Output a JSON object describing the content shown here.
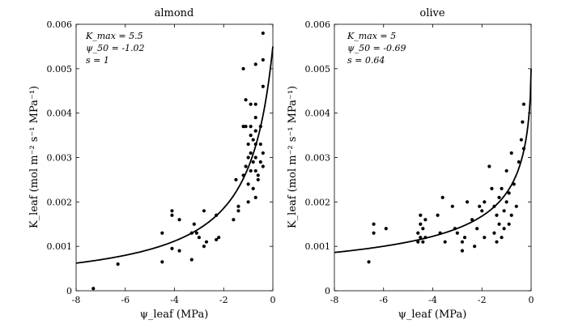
{
  "chart_data": [
    {
      "type": "scatter",
      "title": "almond",
      "xlabel": "ψ_leaf (MPa)",
      "ylabel": "K_leaf (mol m⁻² s⁻¹ MPa⁻¹)",
      "xlim": [
        -8,
        0
      ],
      "ylim": [
        0,
        0.006
      ],
      "xticks": [
        -8,
        -6,
        -4,
        -2,
        0
      ],
      "yticks": [
        0,
        0.001,
        0.002,
        0.003,
        0.004,
        0.005,
        0.006
      ],
      "xtick_labels": [
        "-8",
        "-6",
        "-4",
        "-2",
        "0"
      ],
      "ytick_labels": [
        "0",
        "0.001",
        "0.002",
        "0.003",
        "0.004",
        "0.005",
        "0.006"
      ],
      "annotations": [
        "K_max = 5.5",
        "ψ_50 = -1.02",
        "s = 1"
      ],
      "fit": {
        "kmax": 0.0055,
        "psi50": -1.02,
        "s": 1
      },
      "points": [
        [
          -7.3,
          5e-05
        ],
        [
          -6.3,
          0.0006
        ],
        [
          -4.5,
          0.0013
        ],
        [
          -4.5,
          0.00065
        ],
        [
          -4.1,
          0.0018
        ],
        [
          -4.1,
          0.0017
        ],
        [
          -4.1,
          0.00095
        ],
        [
          -3.8,
          0.0016
        ],
        [
          -3.8,
          0.0009
        ],
        [
          -3.3,
          0.0013
        ],
        [
          -3.2,
          0.0015
        ],
        [
          -3.1,
          0.0013
        ],
        [
          -3.3,
          0.0007
        ],
        [
          -3.0,
          0.0012
        ],
        [
          -2.8,
          0.0018
        ],
        [
          -2.8,
          0.001
        ],
        [
          -2.7,
          0.0011
        ],
        [
          -2.3,
          0.0017
        ],
        [
          -2.2,
          0.0012
        ],
        [
          -2.3,
          0.00115
        ],
        [
          -1.6,
          0.0016
        ],
        [
          -1.5,
          0.0025
        ],
        [
          -1.4,
          0.0018
        ],
        [
          -1.4,
          0.0019
        ],
        [
          -1.2,
          0.005
        ],
        [
          -1.1,
          0.0043
        ],
        [
          -1.1,
          0.0037
        ],
        [
          -1.2,
          0.0037
        ],
        [
          -1.0,
          0.0033
        ],
        [
          -1.0,
          0.003
        ],
        [
          -1.1,
          0.0028
        ],
        [
          -1.2,
          0.0026
        ],
        [
          -1.0,
          0.0024
        ],
        [
          -1.0,
          0.002
        ],
        [
          -0.9,
          0.0042
        ],
        [
          -0.9,
          0.0037
        ],
        [
          -0.9,
          0.0035
        ],
        [
          -0.9,
          0.0031
        ],
        [
          -0.9,
          0.0027
        ],
        [
          -0.8,
          0.0034
        ],
        [
          -0.8,
          0.0029
        ],
        [
          -0.8,
          0.0023
        ],
        [
          -0.7,
          0.0051
        ],
        [
          -0.7,
          0.0042
        ],
        [
          -0.7,
          0.0039
        ],
        [
          -0.7,
          0.0036
        ],
        [
          -0.7,
          0.0033
        ],
        [
          -0.7,
          0.003
        ],
        [
          -0.7,
          0.0027
        ],
        [
          -0.7,
          0.0021
        ],
        [
          -0.6,
          0.0025
        ],
        [
          -0.6,
          0.0026
        ],
        [
          -0.5,
          0.0037
        ],
        [
          -0.5,
          0.0033
        ],
        [
          -0.5,
          0.0029
        ],
        [
          -0.4,
          0.0058
        ],
        [
          -0.4,
          0.0052
        ],
        [
          -0.4,
          0.0046
        ],
        [
          -0.4,
          0.0031
        ],
        [
          -0.4,
          0.0028
        ]
      ]
    },
    {
      "type": "scatter",
      "title": "olive",
      "xlabel": "ψ_leaf (MPa)",
      "ylabel": "K_leaf (mol m⁻² s⁻¹ MPa⁻¹)",
      "xlim": [
        -8,
        0
      ],
      "ylim": [
        0,
        0.006
      ],
      "xticks": [
        -8,
        -6,
        -4,
        -2,
        0
      ],
      "yticks": [
        0,
        0.001,
        0.002,
        0.003,
        0.004,
        0.005,
        0.006
      ],
      "xtick_labels": [
        "-8",
        "-6",
        "-4",
        "-2",
        "0"
      ],
      "ytick_labels": [
        "0",
        "0.001",
        "0.002",
        "0.003",
        "0.004",
        "0.005",
        "0.006"
      ],
      "annotations": [
        "K_max = 5",
        "ψ_50 = -0.69",
        "s = 0.64"
      ],
      "fit": {
        "kmax": 0.005,
        "psi50": -0.69,
        "s": 0.64
      },
      "points": [
        [
          -6.6,
          0.00065
        ],
        [
          -6.4,
          0.0015
        ],
        [
          -6.4,
          0.0013
        ],
        [
          -5.9,
          0.0014
        ],
        [
          -4.6,
          0.0013
        ],
        [
          -4.6,
          0.0011
        ],
        [
          -4.5,
          0.0017
        ],
        [
          -4.5,
          0.0015
        ],
        [
          -4.5,
          0.0012
        ],
        [
          -4.4,
          0.0014
        ],
        [
          -4.4,
          0.0011
        ],
        [
          -4.3,
          0.0012
        ],
        [
          -4.3,
          0.0016
        ],
        [
          -3.8,
          0.0017
        ],
        [
          -3.7,
          0.0013
        ],
        [
          -3.6,
          0.0021
        ],
        [
          -3.5,
          0.0011
        ],
        [
          -3.2,
          0.0019
        ],
        [
          -3.1,
          0.0014
        ],
        [
          -3.0,
          0.0013
        ],
        [
          -2.8,
          0.0009
        ],
        [
          -2.8,
          0.0011
        ],
        [
          -2.7,
          0.0012
        ],
        [
          -2.6,
          0.002
        ],
        [
          -2.4,
          0.0016
        ],
        [
          -2.3,
          0.001
        ],
        [
          -2.2,
          0.0014
        ],
        [
          -2.1,
          0.0019
        ],
        [
          -2.0,
          0.0018
        ],
        [
          -1.9,
          0.0012
        ],
        [
          -1.9,
          0.002
        ],
        [
          -1.7,
          0.0028
        ],
        [
          -1.6,
          0.0023
        ],
        [
          -1.5,
          0.0019
        ],
        [
          -1.5,
          0.0013
        ],
        [
          -1.4,
          0.0017
        ],
        [
          -1.4,
          0.0011
        ],
        [
          -1.3,
          0.0015
        ],
        [
          -1.3,
          0.0021
        ],
        [
          -1.2,
          0.0012
        ],
        [
          -1.2,
          0.0023
        ],
        [
          -1.1,
          0.0018
        ],
        [
          -1.1,
          0.0014
        ],
        [
          -1.0,
          0.002
        ],
        [
          -1.0,
          0.0027
        ],
        [
          -0.9,
          0.0015
        ],
        [
          -0.9,
          0.0022
        ],
        [
          -0.8,
          0.0017
        ],
        [
          -0.8,
          0.0031
        ],
        [
          -0.7,
          0.0024
        ],
        [
          -0.6,
          0.0019
        ],
        [
          -0.5,
          0.0029
        ],
        [
          -0.4,
          0.0034
        ],
        [
          -0.35,
          0.0038
        ],
        [
          -0.3,
          0.0042
        ],
        [
          -0.3,
          0.0032
        ]
      ]
    }
  ]
}
